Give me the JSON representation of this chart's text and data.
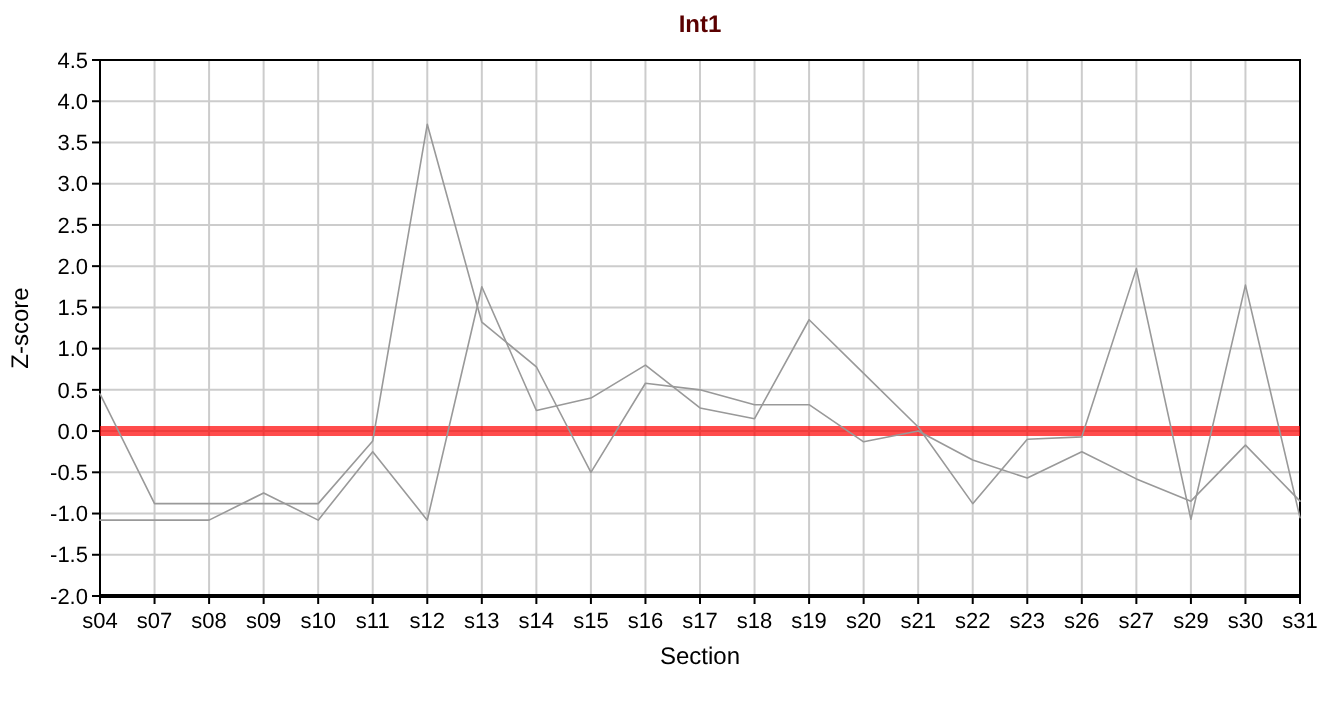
{
  "chart_data": {
    "type": "line",
    "title": "Int1",
    "xlabel": "Section",
    "ylabel": "Z-score",
    "categories": [
      "s04",
      "s07",
      "s08",
      "s09",
      "s10",
      "s11",
      "s12",
      "s13",
      "s14",
      "s15",
      "s16",
      "s17",
      "s18",
      "s19",
      "s20",
      "s21",
      "s22",
      "s23",
      "s26",
      "s27",
      "s29",
      "s30",
      "s31"
    ],
    "series": [
      {
        "color": "#999999",
        "values": [
          0.45,
          -0.88,
          -0.88,
          -0.88,
          -0.88,
          -0.12,
          3.72,
          1.32,
          0.78,
          -0.5,
          0.58,
          0.5,
          0.32,
          0.32,
          -0.13,
          0.0,
          -0.35,
          -0.57,
          -0.25,
          -0.58,
          -0.85,
          -0.17,
          -0.85
        ]
      },
      {
        "color": "#999999",
        "values": [
          -1.08,
          -1.08,
          -1.08,
          -0.75,
          -1.08,
          -0.25,
          -1.08,
          1.75,
          0.25,
          0.4,
          0.8,
          0.28,
          0.15,
          1.35,
          0.7,
          0.05,
          -0.88,
          -0.1,
          -0.07,
          1.97,
          -1.07,
          1.77,
          -1.05
        ]
      }
    ],
    "ylim": [
      -2,
      4.5
    ],
    "yticks": [
      {
        "value": -2,
        "label": "-2.0"
      },
      {
        "value": -1.5,
        "label": "-1.5"
      },
      {
        "value": -1,
        "label": "-1.0"
      },
      {
        "value": -0.5,
        "label": "-0.5"
      },
      {
        "value": 0,
        "label": "0.0"
      },
      {
        "value": 0.5,
        "label": "0.5"
      },
      {
        "value": 1,
        "label": "1.0"
      },
      {
        "value": 1.5,
        "label": "1.5"
      },
      {
        "value": 2,
        "label": "2.0"
      },
      {
        "value": 2.5,
        "label": "2.5"
      },
      {
        "value": 3,
        "label": "3.0"
      },
      {
        "value": 3.5,
        "label": "3.5"
      },
      {
        "value": 4,
        "label": "4.0"
      },
      {
        "value": 4.5,
        "label": "4.5"
      }
    ],
    "grid": true,
    "ref_lines": [
      {
        "axis": "y",
        "value": 0,
        "color": "#ff0000"
      }
    ]
  }
}
